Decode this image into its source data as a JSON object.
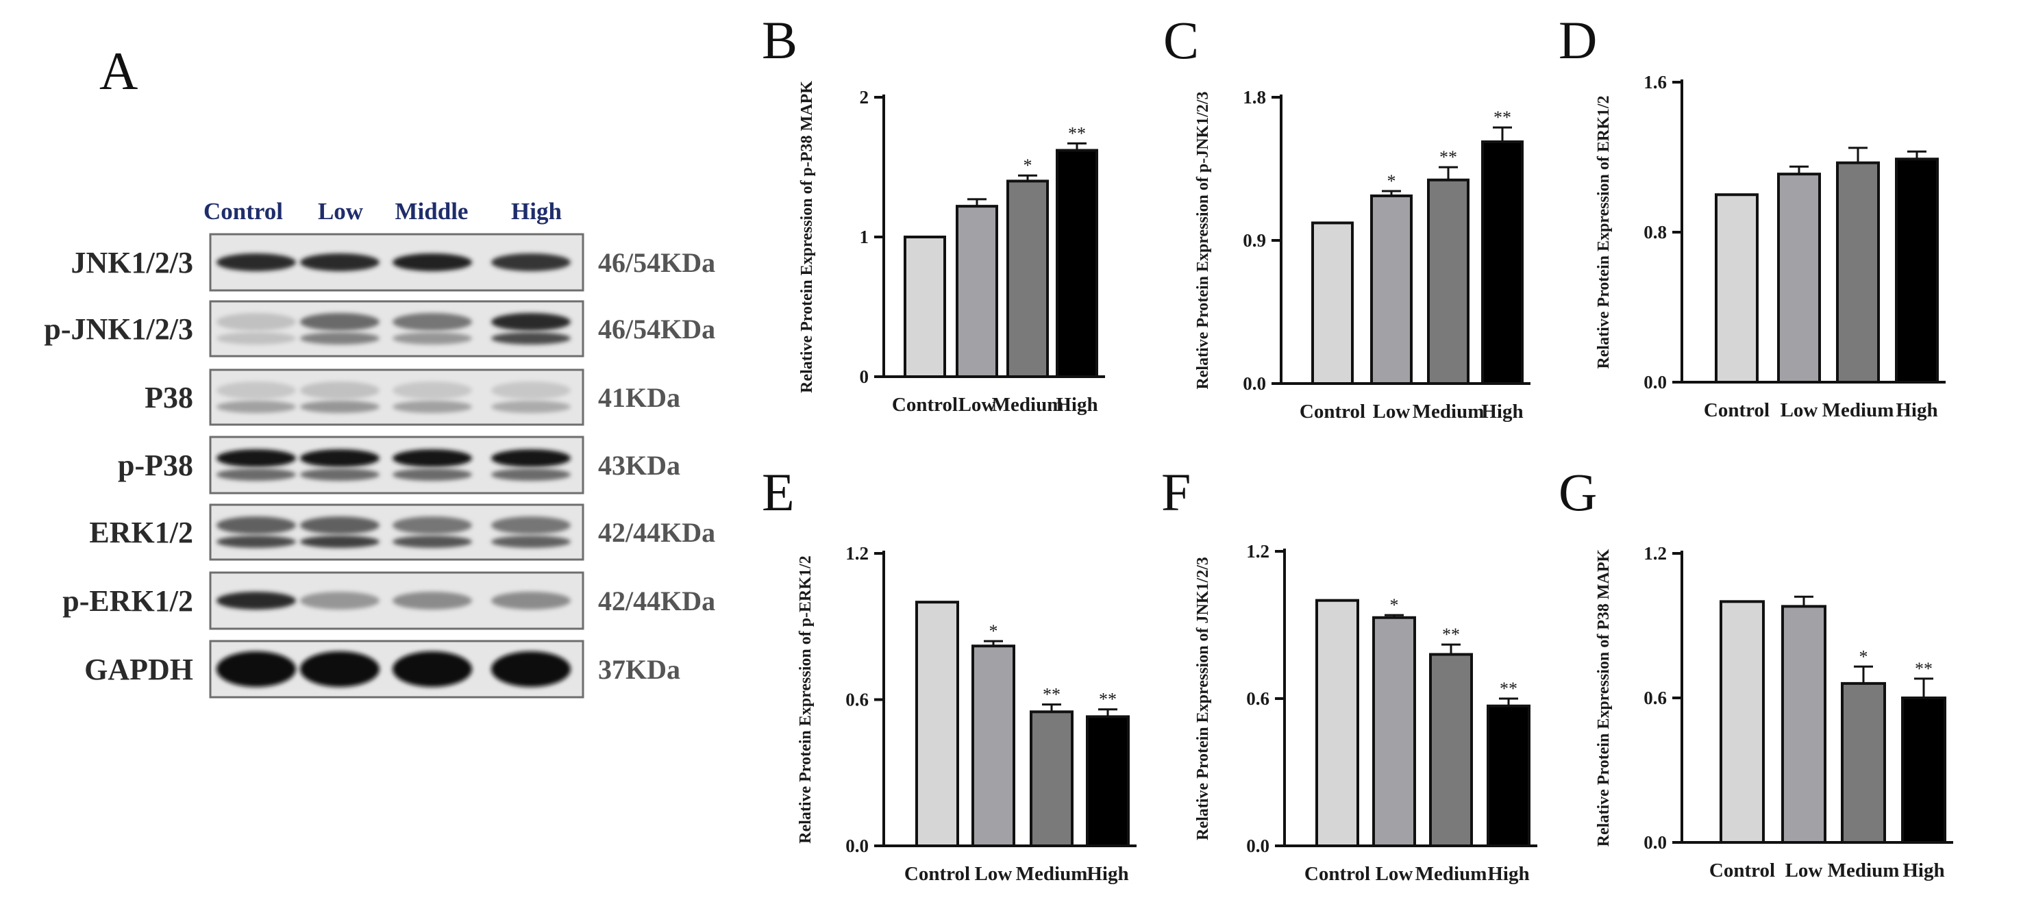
{
  "panel_a": {
    "letter": "A",
    "lanes": [
      "Control",
      "Low",
      "Middle",
      "High"
    ],
    "blots": [
      {
        "protein": "JNK1/2/3",
        "size": "46/54KDa",
        "band_intensity": [
          0.85,
          0.85,
          0.9,
          0.8
        ],
        "lower_band_intensity": null
      },
      {
        "protein": "p-JNK1/2/3",
        "size": "46/54KDa",
        "band_intensity": [
          0.15,
          0.55,
          0.5,
          0.85
        ],
        "lower_band_intensity": [
          0.15,
          0.45,
          0.35,
          0.7
        ]
      },
      {
        "protein": "P38",
        "size": "41KDa",
        "band_intensity": [
          0.12,
          0.15,
          0.12,
          0.12
        ],
        "lower_band_intensity": [
          0.3,
          0.35,
          0.3,
          0.25
        ]
      },
      {
        "protein": "p-P38",
        "size": "43KDa",
        "band_intensity": [
          0.95,
          0.95,
          0.95,
          0.95
        ],
        "lower_band_intensity": [
          0.55,
          0.55,
          0.55,
          0.55
        ]
      },
      {
        "protein": "ERK1/2",
        "size": "42/44KDa",
        "band_intensity": [
          0.6,
          0.6,
          0.5,
          0.5
        ],
        "lower_band_intensity": [
          0.7,
          0.75,
          0.65,
          0.6
        ]
      },
      {
        "protein": "p-ERK1/2",
        "size": "42/44KDa",
        "band_intensity": [
          0.85,
          0.35,
          0.4,
          0.4
        ],
        "lower_band_intensity": null
      },
      {
        "protein": "GAPDH",
        "size": "37KDa",
        "band_intensity": [
          1.0,
          1.0,
          1.0,
          1.0
        ],
        "lower_band_intensity": null
      }
    ]
  },
  "colors": {
    "Control": "#d6d6d6",
    "Low": "#a2a2a6",
    "Medium": "#7a7a7a",
    "High": "#000000"
  },
  "chart_data": [
    {
      "id": "B",
      "letter": "B",
      "type": "bar",
      "ylabel": "Relative Protein Expression of p-P38 MAPK",
      "ylabel_bold": false,
      "categories": [
        "Control",
        "Low",
        "Medium",
        "High"
      ],
      "values": [
        1.0,
        1.22,
        1.4,
        1.62
      ],
      "errors": [
        0,
        0.05,
        0.04,
        0.05
      ],
      "significance": [
        "",
        "",
        "*",
        "**"
      ],
      "ylim": [
        0,
        2
      ],
      "yticks": [
        "0",
        "1",
        "2"
      ],
      "ytick_values": [
        0,
        1,
        2
      ]
    },
    {
      "id": "C",
      "letter": "C",
      "type": "bar",
      "ylabel": "Relative Protein Expression of p-JNK1/2/3",
      "ylabel_bold": false,
      "categories": [
        "Control",
        "Low",
        "Medium",
        "High"
      ],
      "values": [
        1.01,
        1.18,
        1.28,
        1.52
      ],
      "errors": [
        0,
        0.03,
        0.08,
        0.09
      ],
      "significance": [
        "",
        "*",
        "**",
        "**"
      ],
      "ylim": [
        0,
        1.8
      ],
      "yticks": [
        "0.0",
        "0.9",
        "1.8"
      ],
      "ytick_values": [
        0,
        0.9,
        1.8
      ]
    },
    {
      "id": "D",
      "letter": "D",
      "type": "bar",
      "ylabel": "Relative Protein Expression of  ERK1/2",
      "ylabel_bold": true,
      "categories": [
        "Control",
        "Low",
        "Medium",
        "High"
      ],
      "values": [
        1.0,
        1.11,
        1.17,
        1.19
      ],
      "errors": [
        0,
        0.04,
        0.08,
        0.04
      ],
      "significance": [
        "",
        "",
        "",
        ""
      ],
      "ylim": [
        0,
        1.6
      ],
      "yticks": [
        "0.0",
        "0.8",
        "1.6"
      ],
      "ytick_values": [
        0,
        0.8,
        1.6
      ]
    },
    {
      "id": "E",
      "letter": "E",
      "type": "bar",
      "ylabel": "Relative Protein Expression of p-ERK1/2",
      "ylabel_bold": true,
      "categories": [
        "Control",
        "Low",
        "Medium",
        "High"
      ],
      "values": [
        1.0,
        0.82,
        0.55,
        0.53
      ],
      "errors": [
        0,
        0.02,
        0.03,
        0.03
      ],
      "significance": [
        "",
        "*",
        "**",
        "**"
      ],
      "ylim": [
        0,
        1.2
      ],
      "yticks": [
        "0.0",
        "0.6",
        "1.2"
      ],
      "ytick_values": [
        0,
        0.6,
        1.2
      ]
    },
    {
      "id": "F",
      "letter": "F",
      "type": "bar",
      "ylabel": "Relative Protein Expression of JNK1/2/3",
      "ylabel_bold": true,
      "categories": [
        "Control",
        "Low",
        "Medium",
        "High"
      ],
      "values": [
        1.0,
        0.93,
        0.78,
        0.57
      ],
      "errors": [
        0,
        0.01,
        0.04,
        0.03
      ],
      "significance": [
        "",
        "*",
        "**",
        "**"
      ],
      "ylim": [
        0,
        1.2
      ],
      "yticks": [
        "0.0",
        "0.6",
        "1.2"
      ],
      "ytick_values": [
        0,
        0.6,
        1.2
      ]
    },
    {
      "id": "G",
      "letter": "G",
      "type": "bar",
      "ylabel": "Relative Protein Expression of P38 MAPK",
      "ylabel_bold": false,
      "categories": [
        "Control",
        "Low",
        "Medium",
        "High"
      ],
      "values": [
        1.0,
        0.98,
        0.66,
        0.6
      ],
      "errors": [
        0,
        0.04,
        0.07,
        0.08
      ],
      "significance": [
        "",
        "",
        "*",
        "**"
      ],
      "ylim": [
        0,
        1.2
      ],
      "yticks": [
        "0.0",
        "0.6",
        "1.2"
      ],
      "ytick_values": [
        0,
        0.6,
        1.2
      ]
    }
  ]
}
